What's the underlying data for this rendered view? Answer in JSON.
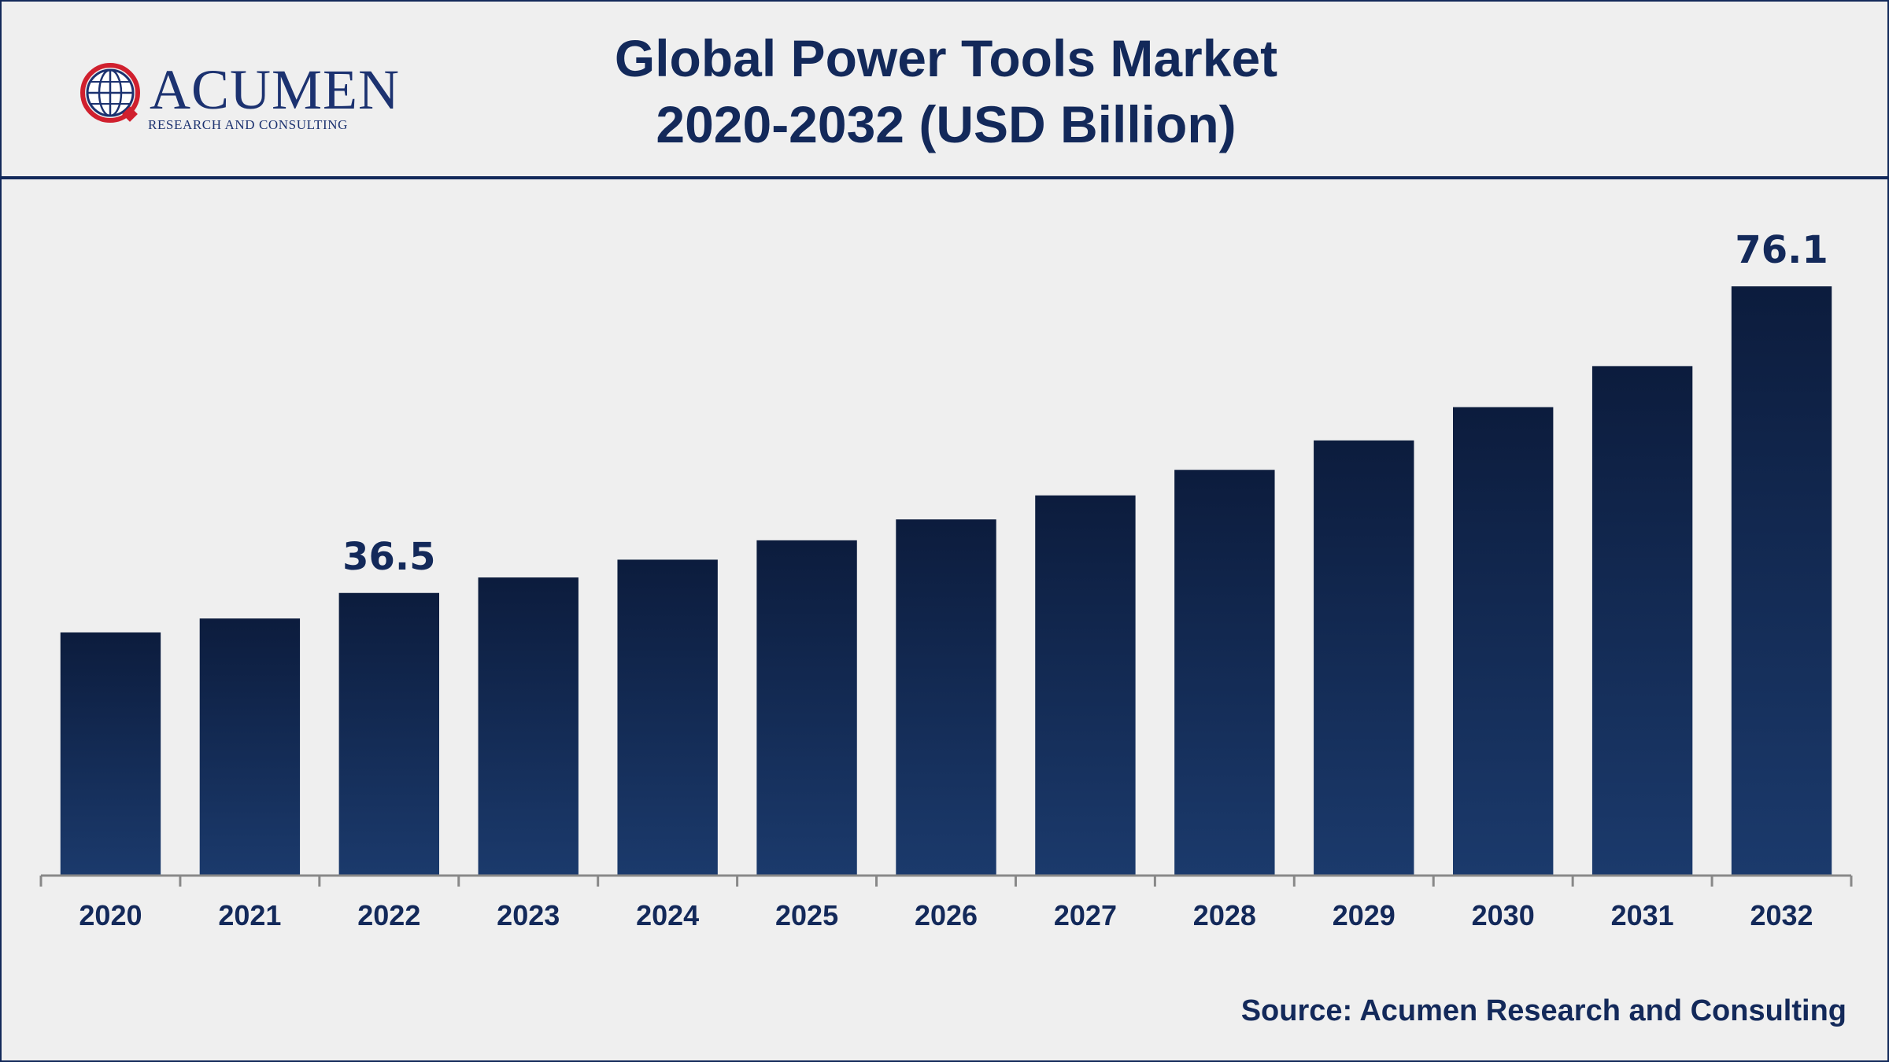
{
  "logo": {
    "name": "ACUMEN",
    "tagline": "RESEARCH AND CONSULTING"
  },
  "colors": {
    "bar_top": "#0c1c3d",
    "bar_bottom": "#1b3a6c",
    "text": "#13295a",
    "axis": "#888888",
    "logo_red": "#d0202e"
  },
  "chart_data": {
    "type": "bar",
    "title_lines": [
      "Global Power Tools Market",
      "2020-2032 (USD Billion)"
    ],
    "categories": [
      "2020",
      "2021",
      "2022",
      "2023",
      "2024",
      "2025",
      "2026",
      "2027",
      "2028",
      "2029",
      "2030",
      "2031",
      "2032"
    ],
    "values": [
      31.4,
      33.2,
      36.5,
      38.5,
      40.8,
      43.3,
      46.0,
      49.1,
      52.4,
      56.2,
      60.5,
      65.8,
      76.1
    ],
    "data_labels": {
      "2": "36.5",
      "12": "76.1"
    },
    "xlabel": "",
    "ylabel": "",
    "ylim": [
      0,
      76.1
    ],
    "grid": false,
    "legend": "none"
  },
  "source": "Source: Acumen Research and Consulting"
}
